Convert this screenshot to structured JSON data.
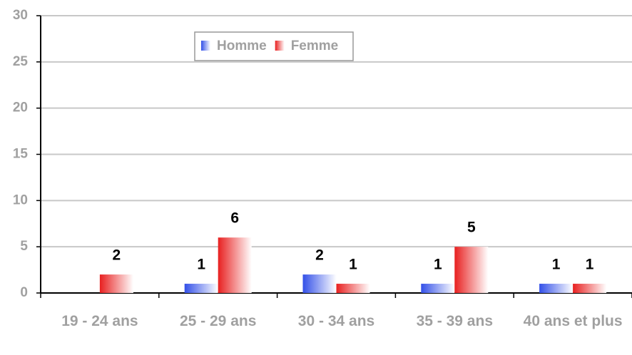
{
  "chart_data": {
    "type": "bar",
    "categories": [
      "19 - 24 ans",
      "25 - 29 ans",
      "30 - 34 ans",
      "35 - 39 ans",
      "40 ans et plus"
    ],
    "series": [
      {
        "name": "Homme",
        "color": "#3350e8",
        "values": [
          null,
          1,
          2,
          1,
          1
        ]
      },
      {
        "name": "Femme",
        "color": "#e82020",
        "values": [
          2,
          6,
          1,
          5,
          1
        ]
      }
    ],
    "ylim": [
      0,
      30
    ],
    "yticks": [
      0,
      5,
      10,
      15,
      20,
      25,
      30
    ],
    "grid": true,
    "legend": "top"
  }
}
